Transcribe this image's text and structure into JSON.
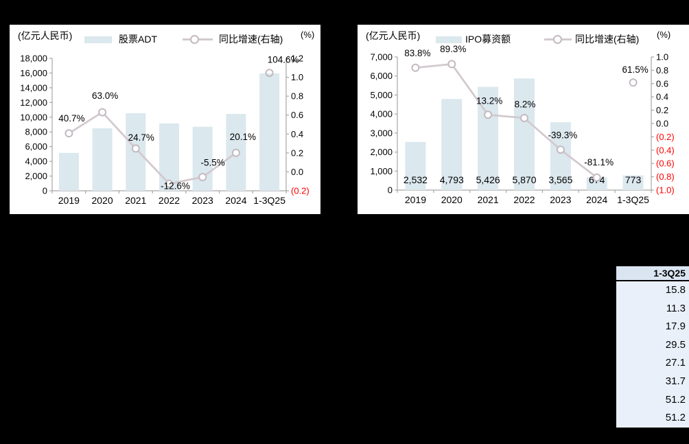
{
  "page": {
    "background_color": "#000000"
  },
  "chart_data": [
    {
      "type": "combo-bar-line",
      "unit_label": "(亿元人民币)",
      "right_unit_label": "(%)",
      "legend_position": "top",
      "grid": false,
      "categories": [
        "2019",
        "2020",
        "2021",
        "2022",
        "2023",
        "2024",
        "1-3Q25"
      ],
      "series": [
        {
          "name": "股票ADT",
          "type": "bar",
          "axis": "left",
          "color": "#dbe8ee",
          "values": [
            5150,
            8500,
            10550,
            9150,
            8700,
            10450,
            15950
          ],
          "values_estimated": true
        },
        {
          "name": "同比增速(右轴)",
          "type": "line",
          "axis": "right",
          "color": "#d2c9cf",
          "marker_color": "#c3bac1",
          "values": [
            0.407,
            0.63,
            0.247,
            -0.126,
            -0.055,
            0.201,
            1.046
          ],
          "point_labels": [
            "40.7%",
            "63.0%",
            "24.7%",
            "-12.6%",
            "-5.5%",
            "20.1%",
            "104.6%"
          ],
          "connected_points": 6
        }
      ],
      "left_axis": {
        "range": [
          0,
          18000
        ],
        "tick_labels": [
          "0",
          "2,000",
          "4,000",
          "6,000",
          "8,000",
          "10,000",
          "12,000",
          "14,000",
          "16,000",
          "18,000"
        ]
      },
      "right_axis": {
        "range": [
          -0.2,
          1.2
        ],
        "tick_labels": [
          "(0.2)",
          "0.0",
          "0.2",
          "0.4",
          "0.6",
          "0.8",
          "1.0",
          "1.2"
        ],
        "negative_color": "#ff0000"
      },
      "axis_color": "#a6a6a6"
    },
    {
      "type": "combo-bar-line",
      "unit_label": "(亿元人民币)",
      "right_unit_label": "(%)",
      "legend_position": "top",
      "grid": false,
      "categories": [
        "2019",
        "2020",
        "2021",
        "2022",
        "2023",
        "2024",
        "1-3Q25"
      ],
      "series": [
        {
          "name": "IPO募资额",
          "type": "bar",
          "axis": "left",
          "color": "#dbe8ee",
          "values": [
            2532,
            4793,
            5426,
            5870,
            3565,
            674,
            773
          ],
          "value_labels": [
            "2,532",
            "4,793",
            "5,426",
            "5,870",
            "3,565",
            "674",
            "773"
          ]
        },
        {
          "name": "同比增速(右轴)",
          "type": "line",
          "axis": "right",
          "color": "#d2c9cf",
          "marker_color": "#c3bac1",
          "values": [
            0.838,
            0.893,
            0.132,
            0.082,
            -0.393,
            -0.811,
            0.615
          ],
          "point_labels": [
            "83.8%",
            "89.3%",
            "13.2%",
            "8.2%",
            "-39.3%",
            "-81.1%",
            "61.5%"
          ],
          "connected_points": 6
        }
      ],
      "left_axis": {
        "range": [
          0,
          7000
        ],
        "tick_labels": [
          "0",
          "1,000",
          "2,000",
          "3,000",
          "4,000",
          "5,000",
          "6,000",
          "7,000"
        ]
      },
      "right_axis": {
        "range": [
          -1.0,
          1.0
        ],
        "tick_labels": [
          "(1.0)",
          "(0.8)",
          "(0.6)",
          "(0.4)",
          "(0.2)",
          "0.0",
          "0.2",
          "0.4",
          "0.6",
          "0.8",
          "1.0"
        ],
        "negative_color": "#ff0000"
      },
      "axis_color": "#a6a6a6"
    }
  ],
  "table": {
    "header": "1-3Q25",
    "rows": [
      "15.8",
      "11.3",
      "17.9",
      "29.5",
      "27.1",
      "31.7",
      "51.2",
      "51.2"
    ],
    "header_bg": "#dbe5f1",
    "row_bg": "#e9f0f9"
  }
}
